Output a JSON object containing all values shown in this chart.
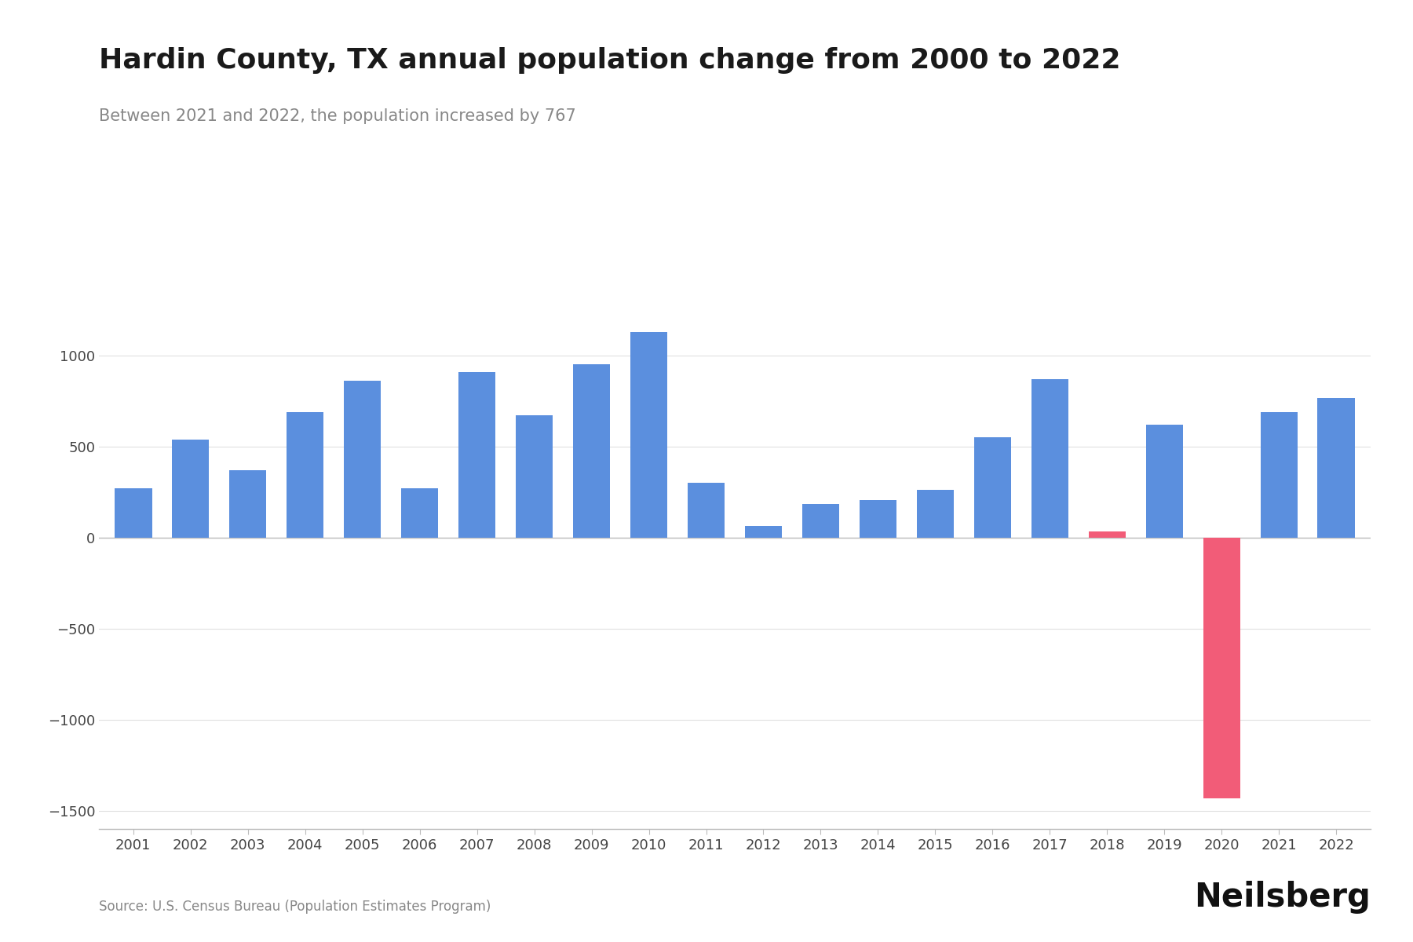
{
  "title": "Hardin County, TX annual population change from 2000 to 2022",
  "subtitle": "Between 2021 and 2022, the population increased by 767",
  "source": "Source: U.S. Census Bureau (Population Estimates Program)",
  "branding": "Neilsberg",
  "years": [
    2001,
    2002,
    2003,
    2004,
    2005,
    2006,
    2007,
    2008,
    2009,
    2010,
    2011,
    2012,
    2013,
    2014,
    2015,
    2016,
    2017,
    2018,
    2019,
    2020,
    2021,
    2022
  ],
  "values": [
    270,
    540,
    370,
    690,
    860,
    270,
    910,
    670,
    950,
    1130,
    300,
    65,
    185,
    205,
    260,
    550,
    870,
    35,
    620,
    -1430,
    690,
    767
  ],
  "bar_is_red": [
    false,
    false,
    false,
    false,
    false,
    false,
    false,
    false,
    false,
    false,
    false,
    false,
    false,
    false,
    false,
    false,
    false,
    true,
    false,
    true,
    false,
    false
  ],
  "ylim": [
    -1600,
    1400
  ],
  "yticks": [
    -1500,
    -1000,
    -500,
    0,
    500,
    1000
  ],
  "background_color": "#ffffff",
  "title_fontsize": 26,
  "subtitle_fontsize": 15,
  "tick_fontsize": 13,
  "bar_color_blue": "#5b8fde",
  "bar_color_red": "#f25c78",
  "grid_color": "#e0e0e0",
  "spine_color": "#bbbbbb",
  "text_color_title": "#1a1a1a",
  "text_color_subtitle": "#888888",
  "text_color_source": "#888888",
  "text_color_brand": "#111111",
  "brand_fontsize": 30
}
